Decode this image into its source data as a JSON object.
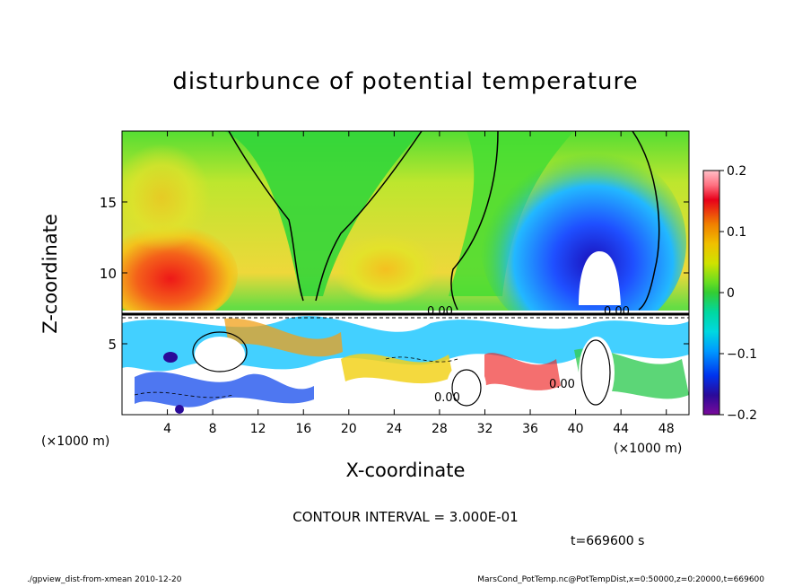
{
  "chart_data": {
    "type": "heatmap",
    "title": "disturbunce of potential temperature",
    "xlabel": "X-coordinate",
    "ylabel": "Z-coordinate",
    "x_unit": "(×1000 m)",
    "x_ticks": [
      "4",
      "8",
      "12",
      "16",
      "20",
      "24",
      "28",
      "32",
      "36",
      "40",
      "44",
      "48"
    ],
    "x_tick_values": [
      4,
      8,
      12,
      16,
      20,
      24,
      28,
      32,
      36,
      40,
      44,
      48
    ],
    "y_ticks": [
      "5",
      "10",
      "15"
    ],
    "y_tick_values": [
      5,
      10,
      15
    ],
    "xlim": [
      0,
      50
    ],
    "ylim": [
      0,
      20
    ],
    "colorbar": {
      "ticks": [
        "0.2",
        "0.1",
        "0",
        "−0.1",
        "−0.2"
      ],
      "tick_values": [
        0.2,
        0.1,
        0,
        -0.1,
        -0.2
      ],
      "range": [
        -0.2,
        0.2
      ]
    },
    "contour_label": "0.00",
    "contour_interval_text": "CONTOUR INTERVAL = 3.000E-01",
    "time_text": "t=669600 s"
  },
  "footer": {
    "left": "./gpview_dist-from-xmean  2010-12-20",
    "right": "MarsCond_PotTemp.nc@PotTempDist,x=0:50000,z=0:20000,t=669600"
  },
  "colors": {
    "pos_max": "#e8001a",
    "zero": "#33cc33",
    "neg_max": "#2a0a99"
  }
}
